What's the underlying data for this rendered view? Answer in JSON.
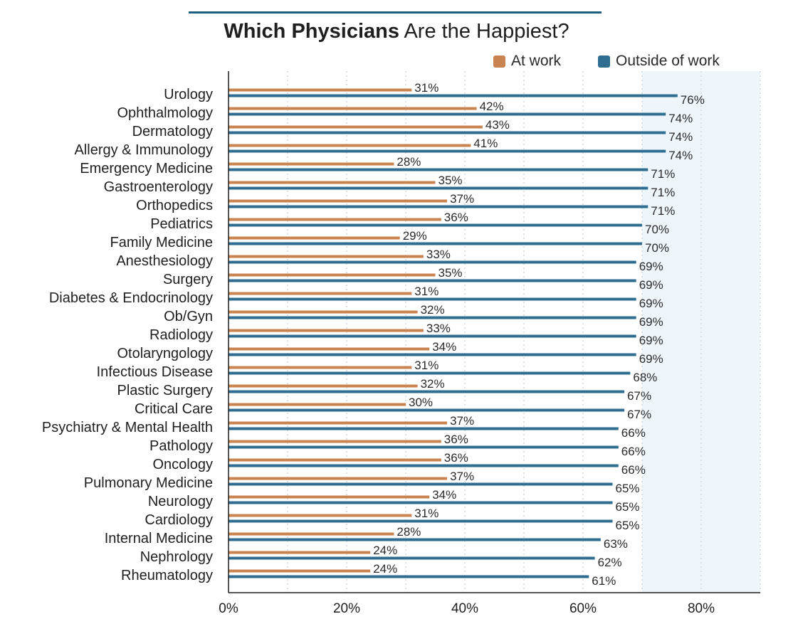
{
  "chart_data": {
    "type": "bar",
    "orientation": "horizontal",
    "title_bold": "Which Physicians",
    "title_rest": " Are the Happiest?",
    "xlabel": "",
    "ylabel": "",
    "xlim": [
      0,
      90
    ],
    "xticks": [
      0,
      20,
      40,
      60,
      80
    ],
    "xtick_labels": [
      "0%",
      "20%",
      "40%",
      "60%",
      "80%"
    ],
    "grid_minor": [
      10,
      30,
      50,
      70,
      90
    ],
    "shaded_from": 70,
    "legend_position": "top-right",
    "categories": [
      "Urology",
      "Ophthalmology",
      "Dermatology",
      "Allergy & Immunology",
      "Emergency Medicine",
      "Gastroenterology",
      "Orthopedics",
      "Pediatrics",
      "Family Medicine",
      "Anesthesiology",
      "Surgery",
      "Diabetes & Endocrinology",
      "Ob/Gyn",
      "Radiology",
      "Otolaryngology",
      "Infectious Disease",
      "Plastic Surgery",
      "Critical Care",
      "Psychiatry & Mental Health",
      "Pathology",
      "Oncology",
      "Pulmonary Medicine",
      "Neurology",
      "Cardiology",
      "Internal Medicine",
      "Nephrology",
      "Rheumatology"
    ],
    "series": [
      {
        "name": "At work",
        "color": "#c8834f",
        "values": [
          31,
          42,
          43,
          41,
          28,
          35,
          37,
          36,
          29,
          33,
          35,
          31,
          32,
          33,
          34,
          31,
          32,
          30,
          37,
          36,
          36,
          37,
          34,
          31,
          28,
          24,
          24
        ],
        "labels": [
          "31%",
          "42%",
          "43%",
          "41%",
          "28%",
          "35%",
          "37%",
          "36%",
          "29%",
          "33%",
          "35%",
          "31%",
          "32%",
          "33%",
          "34%",
          "31%",
          "32%",
          "30%",
          "37%",
          "36%",
          "36%",
          "37%",
          "34%",
          "31%",
          "28%",
          "24%",
          "24%"
        ]
      },
      {
        "name": "Outside of work",
        "color": "#2f6e91",
        "values": [
          76,
          74,
          74,
          74,
          71,
          71,
          71,
          70,
          70,
          69,
          69,
          69,
          69,
          69,
          69,
          68,
          67,
          67,
          66,
          66,
          66,
          65,
          65,
          65,
          63,
          62,
          61
        ],
        "labels": [
          "76%",
          "74%",
          "74%",
          "74%",
          "71%",
          "71%",
          "71%",
          "70%",
          "70%",
          "69%",
          "69%",
          "69%",
          "69%",
          "69%",
          "69%",
          "68%",
          "67%",
          "67%",
          "66%",
          "66%",
          "66%",
          "65%",
          "65%",
          "65%",
          "63%",
          "62%",
          "61%"
        ]
      }
    ]
  },
  "colors": {
    "title_rule": "#1d5d7d",
    "axis": "#1f1f1f",
    "grid": "#b9c6cf",
    "shade": "#eef6fb"
  }
}
